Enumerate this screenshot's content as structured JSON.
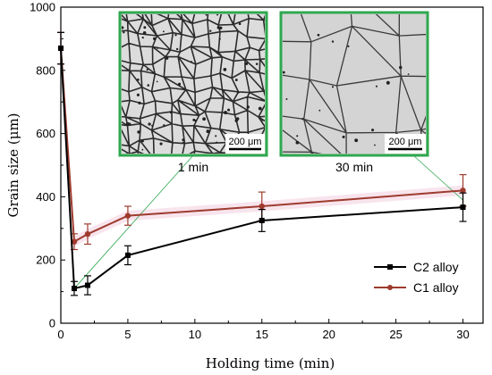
{
  "chart_data": {
    "type": "line",
    "xlabel": "Holding time (min)",
    "ylabel": "Grain size (μm)",
    "xlim": [
      0,
      31.5
    ],
    "ylim": [
      0,
      1000
    ],
    "xticks": [
      0,
      5,
      10,
      15,
      20,
      25,
      30
    ],
    "yticks": [
      0,
      200,
      400,
      600,
      800,
      1000
    ],
    "legend_position": "bottom-right",
    "series": [
      {
        "name": "C1 alloy",
        "color": "#9e3b2e",
        "marker": "circle",
        "x": [
          0,
          1,
          2,
          5,
          15,
          30
        ],
        "y": [
          870,
          258,
          282,
          340,
          370,
          420
        ],
        "err": [
          50,
          25,
          32,
          30,
          45,
          50
        ]
      },
      {
        "name": "C2 alloy",
        "color": "#000000",
        "marker": "square",
        "x": [
          0,
          1,
          2,
          5,
          15,
          30
        ],
        "y": [
          870,
          110,
          120,
          215,
          325,
          367
        ],
        "err": [
          50,
          22,
          30,
          30,
          35,
          45
        ]
      }
    ]
  },
  "insets": [
    {
      "caption": "1 min",
      "scale_label": "200 μm",
      "connect_x": 1,
      "connect_y": 110
    },
    {
      "caption": "30 min",
      "scale_label": "200 μm",
      "connect_x": 30,
      "connect_y": 367
    }
  ],
  "colors": {
    "inset_border": "#2fa84f",
    "highlight_band": "#f5d9e6"
  }
}
